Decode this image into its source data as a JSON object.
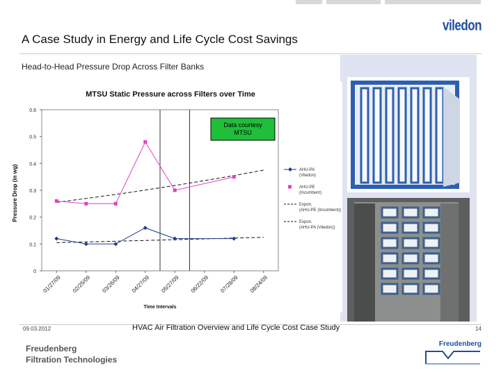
{
  "header": {
    "title": "A Case Study in Energy and Life Cycle Cost Savings",
    "subtitle": "Head-to-Head Pressure Drop Across Filter Banks",
    "logo_text": "viledon",
    "brand_color": "#1f4e9c"
  },
  "footer": {
    "date": "09.03.2012",
    "text": "HVAC Air Filtration Overview and Life Cycle Cost Case Study",
    "page": "14",
    "company_line1": "Freudenberg",
    "company_line2": "Filtration Technologies",
    "logo_text": "Freudenberg"
  },
  "chart_data": {
    "type": "line",
    "title": "MTSU Static Pressure across Filters over Time",
    "xlabel": "Time Intervals",
    "ylabel": "Pressure Drop (in wg)",
    "ylim": [
      0,
      0.6
    ],
    "yticks": [
      "0",
      "0.1",
      "0.2",
      "0.3",
      "0.4",
      "0.5",
      "0.6"
    ],
    "categories": [
      "01/27/09",
      "02/25/09",
      "03/26/09",
      "04/27/09",
      "05/27/09",
      "06/22/09",
      "07/28/09",
      "08/24/09"
    ],
    "annotation": "Data courtesy MTSU",
    "legend_position": "right",
    "series": [
      {
        "name": "AHU-PA (Viledon)",
        "color": "#1f3a93",
        "marker": "diamond",
        "values": [
          0.12,
          0.1,
          0.1,
          0.16,
          0.12,
          null,
          0.12,
          null
        ]
      },
      {
        "name": "AHU-PE (Incumbent)",
        "color": "#e040c8",
        "marker": "square",
        "values": [
          0.26,
          0.25,
          0.25,
          0.48,
          0.3,
          null,
          0.35,
          null
        ]
      }
    ],
    "trendlines": [
      {
        "name": "Expon. (AHU-PE (Incumbent))",
        "from": 0.255,
        "to": 0.375
      },
      {
        "name": "Expon. (AHU-PA (Viledon))",
        "from": 0.105,
        "to": 0.125
      }
    ],
    "gridlines": false,
    "grid_vertical_markers": [
      3,
      4
    ]
  }
}
